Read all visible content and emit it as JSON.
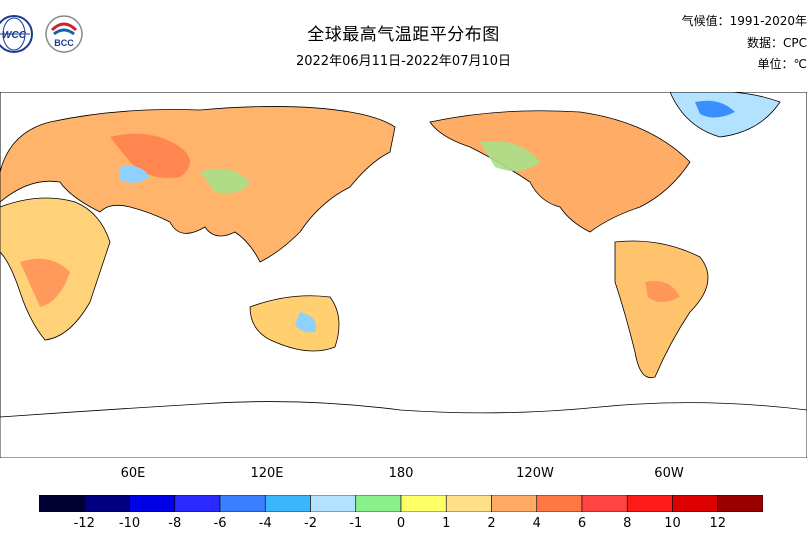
{
  "header": {
    "title": "全球最高气温距平分布图",
    "period": "2022年06月11日-2022年07月10日",
    "climatology": "气候值：1991-2020年",
    "data_source": "数据：CPC",
    "unit": "单位：℃"
  },
  "logos": {
    "left": "WCC",
    "right": "BCC"
  },
  "map": {
    "x_ticks": [
      "60E",
      "120E",
      "180",
      "120W",
      "60W"
    ]
  },
  "colorbar": {
    "colors": [
      "#000033",
      "#000080",
      "#0000e6",
      "#2a2aff",
      "#3a7fff",
      "#3ab6ff",
      "#b3e2ff",
      "#89f08c",
      "#ffff66",
      "#ffe08a",
      "#ffaa66",
      "#ff7744",
      "#ff4444",
      "#ff1a1a",
      "#dd0000",
      "#990000"
    ],
    "labels": [
      "-12",
      "-10",
      "-8",
      "-6",
      "-4",
      "-2",
      "-1",
      "0",
      "1",
      "2",
      "4",
      "6",
      "8",
      "10",
      "12"
    ]
  }
}
